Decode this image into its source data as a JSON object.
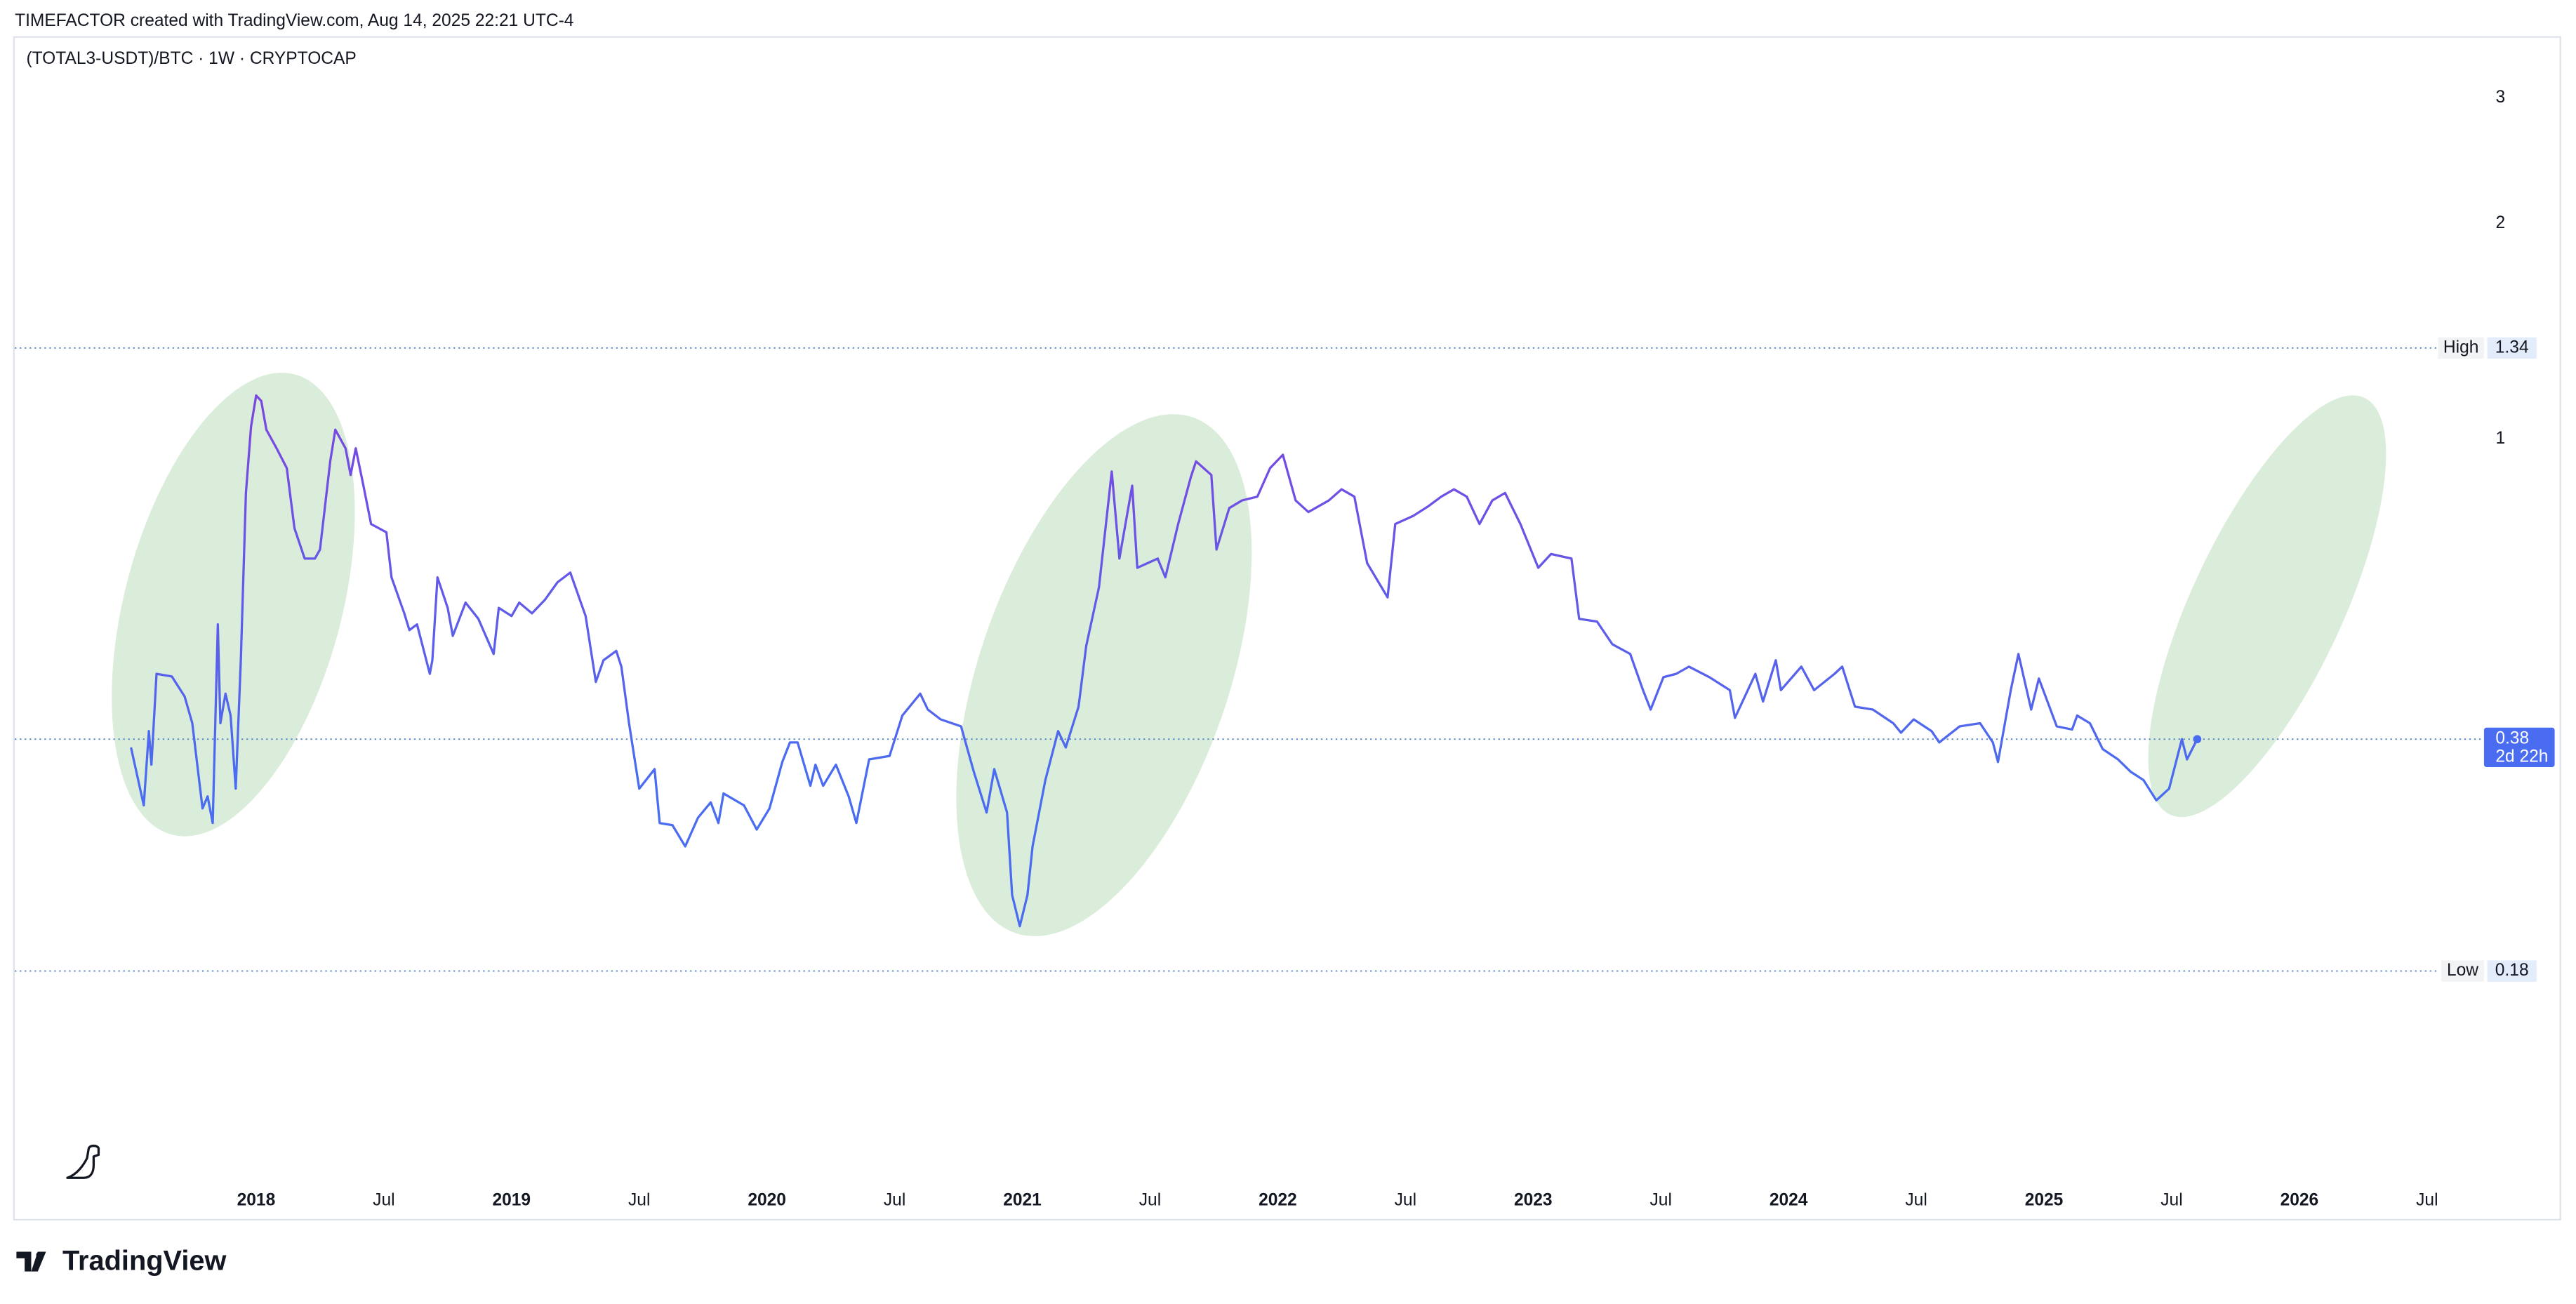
{
  "header": "TIMEFACTOR created with TradingView.com, Aug 14, 2025 22:21 UTC-4",
  "brand": "TradingView",
  "chart_data": {
    "type": "line",
    "title": "(TOTAL3-USDT)/BTC · 1W · CRYPTOCAP",
    "log_scale": true,
    "grid": false,
    "color": "#4a6cf0",
    "color_high": "#7b47e0",
    "xlim": [
      2017.055,
      2026.71
    ],
    "ylim": [
      0.081,
      3.66
    ],
    "yticks": [
      1,
      2,
      3
    ],
    "xticks": [
      2018,
      {
        "value": 2018.5,
        "label": "Jul"
      },
      2019,
      {
        "value": 2019.5,
        "label": "Jul"
      },
      2020,
      {
        "value": 2020.5,
        "label": "Jul"
      },
      2021,
      {
        "value": 2021.5,
        "label": "Jul"
      },
      2022,
      {
        "value": 2022.5,
        "label": "Jul"
      },
      2023,
      {
        "value": 2023.5,
        "label": "Jul"
      },
      2024,
      {
        "value": 2024.5,
        "label": "Jul"
      },
      2025,
      {
        "value": 2025.5,
        "label": "Jul"
      },
      2026,
      {
        "value": 2026.5,
        "label": "Jul"
      }
    ],
    "x": [
      2017.51,
      2017.56,
      2017.58,
      2017.59,
      2017.61,
      2017.67,
      2017.72,
      2017.75,
      2017.79,
      2017.81,
      2017.83,
      2017.85,
      2017.86,
      2017.88,
      2017.9,
      2017.92,
      2017.94,
      2017.96,
      2017.98,
      2018.0,
      2018.02,
      2018.04,
      2018.08,
      2018.12,
      2018.15,
      2018.19,
      2018.23,
      2018.25,
      2018.29,
      2018.31,
      2018.35,
      2018.37,
      2018.39,
      2018.42,
      2018.45,
      2018.51,
      2018.53,
      2018.58,
      2018.6,
      2018.63,
      2018.68,
      2018.69,
      2018.71,
      2018.75,
      2018.77,
      2018.82,
      2018.87,
      2018.93,
      2018.95,
      2019.0,
      2019.03,
      2019.08,
      2019.13,
      2019.18,
      2019.23,
      2019.29,
      2019.33,
      2019.36,
      2019.41,
      2019.43,
      2019.46,
      2019.5,
      2019.56,
      2019.58,
      2019.63,
      2019.68,
      2019.73,
      2019.78,
      2019.81,
      2019.83,
      2019.91,
      2019.96,
      2020.01,
      2020.06,
      2020.09,
      2020.12,
      2020.17,
      2020.19,
      2020.22,
      2020.27,
      2020.32,
      2020.35,
      2020.4,
      2020.48,
      2020.53,
      2020.6,
      2020.63,
      2020.68,
      2020.76,
      2020.81,
      2020.86,
      2020.89,
      2020.94,
      2020.96,
      2020.99,
      2021.02,
      2021.04,
      2021.09,
      2021.14,
      2021.17,
      2021.22,
      2021.25,
      2021.3,
      2021.35,
      2021.38,
      2021.43,
      2021.45,
      2021.53,
      2021.56,
      2021.61,
      2021.66,
      2021.68,
      2021.74,
      2021.76,
      2021.81,
      2021.86,
      2021.92,
      2021.97,
      2022.02,
      2022.07,
      2022.12,
      2022.2,
      2022.25,
      2022.3,
      2022.35,
      2022.43,
      2022.46,
      2022.53,
      2022.59,
      2022.64,
      2022.69,
      2022.74,
      2022.79,
      2022.84,
      2022.89,
      2022.95,
      2023.02,
      2023.07,
      2023.15,
      2023.18,
      2023.25,
      2023.31,
      2023.38,
      2023.43,
      2023.46,
      2023.51,
      2023.56,
      2023.61,
      2023.69,
      2023.77,
      2023.79,
      2023.87,
      2023.9,
      2023.95,
      2023.97,
      2024.05,
      2024.1,
      2024.18,
      2024.21,
      2024.26,
      2024.33,
      2024.41,
      2024.44,
      2024.49,
      2024.56,
      2024.59,
      2024.67,
      2024.75,
      2024.8,
      2024.82,
      2024.87,
      2024.9,
      2024.95,
      2024.98,
      2025.05,
      2025.11,
      2025.13,
      2025.18,
      2025.23,
      2025.29,
      2025.34,
      2025.39,
      2025.44,
      2025.49,
      2025.54,
      2025.56,
      2025.6
    ],
    "values": [
      0.37,
      0.307,
      0.39,
      0.35,
      0.469,
      0.465,
      0.436,
      0.4,
      0.304,
      0.316,
      0.29,
      0.55,
      0.4,
      0.44,
      0.41,
      0.324,
      0.49,
      0.84,
      1.04,
      1.15,
      1.13,
      1.03,
      0.97,
      0.91,
      0.75,
      0.68,
      0.68,
      0.7,
      0.93,
      1.03,
      0.97,
      0.89,
      0.97,
      0.86,
      0.76,
      0.74,
      0.64,
      0.57,
      0.54,
      0.55,
      0.469,
      0.49,
      0.64,
      0.58,
      0.53,
      0.59,
      0.56,
      0.5,
      0.58,
      0.565,
      0.59,
      0.57,
      0.595,
      0.63,
      0.65,
      0.565,
      0.457,
      0.49,
      0.505,
      0.48,
      0.4,
      0.324,
      0.345,
      0.29,
      0.288,
      0.269,
      0.295,
      0.31,
      0.29,
      0.319,
      0.307,
      0.284,
      0.304,
      0.353,
      0.376,
      0.376,
      0.327,
      0.35,
      0.327,
      0.35,
      0.316,
      0.29,
      0.356,
      0.36,
      0.41,
      0.44,
      0.418,
      0.405,
      0.396,
      0.342,
      0.3,
      0.345,
      0.3,
      0.23,
      0.208,
      0.23,
      0.269,
      0.333,
      0.39,
      0.37,
      0.422,
      0.513,
      0.62,
      0.9,
      0.68,
      0.86,
      0.66,
      0.68,
      0.64,
      0.76,
      0.885,
      0.93,
      0.89,
      0.7,
      0.8,
      0.82,
      0.83,
      0.91,
      0.95,
      0.82,
      0.79,
      0.82,
      0.85,
      0.83,
      0.67,
      0.6,
      0.76,
      0.78,
      0.805,
      0.83,
      0.85,
      0.83,
      0.76,
      0.82,
      0.84,
      0.76,
      0.66,
      0.69,
      0.68,
      0.56,
      0.555,
      0.516,
      0.5,
      0.445,
      0.418,
      0.464,
      0.469,
      0.48,
      0.464,
      0.445,
      0.407,
      0.469,
      0.429,
      0.49,
      0.445,
      0.48,
      0.445,
      0.469,
      0.48,
      0.422,
      0.418,
      0.4,
      0.388,
      0.405,
      0.39,
      0.376,
      0.396,
      0.4,
      0.376,
      0.353,
      0.445,
      0.5,
      0.418,
      0.462,
      0.396,
      0.392,
      0.41,
      0.4,
      0.368,
      0.356,
      0.342,
      0.333,
      0.312,
      0.324,
      0.38,
      0.356,
      0.38
    ],
    "high_label": "High",
    "high": 1.34,
    "low_label": "Low",
    "low": 0.18,
    "last_value": 0.38,
    "countdown": "2d 22h"
  }
}
